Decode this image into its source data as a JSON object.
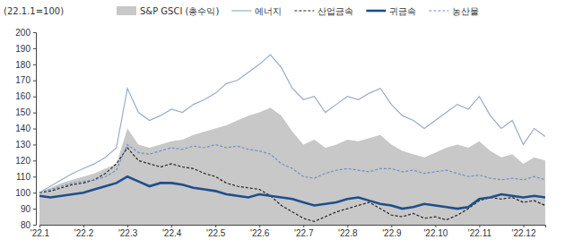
{
  "chart_data": {
    "type": "line",
    "y_label": "(22.1.1=100)",
    "categories": [
      "'22.1",
      null,
      null,
      null,
      "'22.2",
      null,
      null,
      null,
      "'22.3",
      null,
      null,
      null,
      "'22.4",
      null,
      null,
      null,
      "'22.5",
      null,
      null,
      null,
      "'22.6",
      null,
      null,
      null,
      "'22.7",
      null,
      null,
      null,
      "'22.8",
      null,
      null,
      null,
      "'22.9",
      null,
      null,
      null,
      "'22.10",
      null,
      null,
      null,
      "'22.11",
      null,
      null,
      null,
      "'22.12",
      null,
      null
    ],
    "ylim": [
      80,
      200
    ],
    "yticks": [
      80,
      90,
      100,
      110,
      120,
      130,
      140,
      150,
      160,
      170,
      180,
      190,
      200
    ],
    "grid": false,
    "legend": "top",
    "series": [
      {
        "name": "S&P GSCI (총수익)",
        "type": "area",
        "color": "#c8c8c8",
        "values": [
          100,
          103,
          106,
          108,
          110,
          112,
          115,
          118,
          140,
          130,
          128,
          130,
          132,
          133,
          136,
          138,
          140,
          142,
          145,
          148,
          150,
          153,
          148,
          138,
          130,
          133,
          128,
          130,
          133,
          132,
          134,
          136,
          130,
          126,
          124,
          122,
          125,
          128,
          130,
          128,
          132,
          126,
          122,
          124,
          118,
          122,
          120
        ]
      },
      {
        "name": "에너지",
        "type": "line",
        "color": "#9aabc8",
        "line_style": "solid",
        "values": [
          100,
          104,
          108,
          112,
          115,
          118,
          122,
          128,
          165,
          150,
          145,
          148,
          152,
          150,
          155,
          158,
          162,
          168,
          170,
          175,
          180,
          186,
          178,
          165,
          158,
          160,
          150,
          155,
          160,
          158,
          162,
          165,
          155,
          148,
          145,
          140,
          145,
          150,
          155,
          152,
          160,
          148,
          140,
          145,
          130,
          140,
          135
        ]
      },
      {
        "name": "산업금속",
        "type": "line",
        "color": "#222222",
        "line_style": "dashed",
        "values": [
          100,
          101,
          103,
          105,
          106,
          108,
          112,
          118,
          128,
          120,
          118,
          116,
          118,
          116,
          115,
          112,
          110,
          106,
          104,
          103,
          102,
          98,
          92,
          88,
          84,
          82,
          85,
          88,
          90,
          92,
          94,
          90,
          86,
          85,
          87,
          84,
          85,
          83,
          86,
          90,
          95,
          97,
          96,
          97,
          94,
          95,
          92
        ]
      },
      {
        "name": "귀금속",
        "type": "line",
        "color": "#1f4e8c",
        "line_style": "thick",
        "values": [
          98,
          97,
          98,
          99,
          100,
          102,
          104,
          106,
          110,
          107,
          104,
          106,
          106,
          105,
          103,
          102,
          101,
          99,
          98,
          97,
          99,
          98,
          97,
          96,
          94,
          92,
          93,
          94,
          96,
          97,
          95,
          93,
          92,
          90,
          91,
          93,
          92,
          91,
          90,
          91,
          96,
          97,
          99,
          98,
          97,
          98,
          97
        ]
      },
      {
        "name": "농산물",
        "type": "line",
        "color": "#6f8fc8",
        "line_style": "dashed",
        "values": [
          100,
          102,
          104,
          106,
          107,
          108,
          110,
          114,
          130,
          125,
          124,
          126,
          128,
          127,
          129,
          128,
          130,
          128,
          129,
          127,
          126,
          124,
          118,
          115,
          110,
          109,
          112,
          114,
          115,
          114,
          113,
          115,
          115,
          113,
          114,
          112,
          113,
          114,
          112,
          110,
          111,
          109,
          108,
          109,
          108,
          110,
          108
        ]
      }
    ]
  }
}
